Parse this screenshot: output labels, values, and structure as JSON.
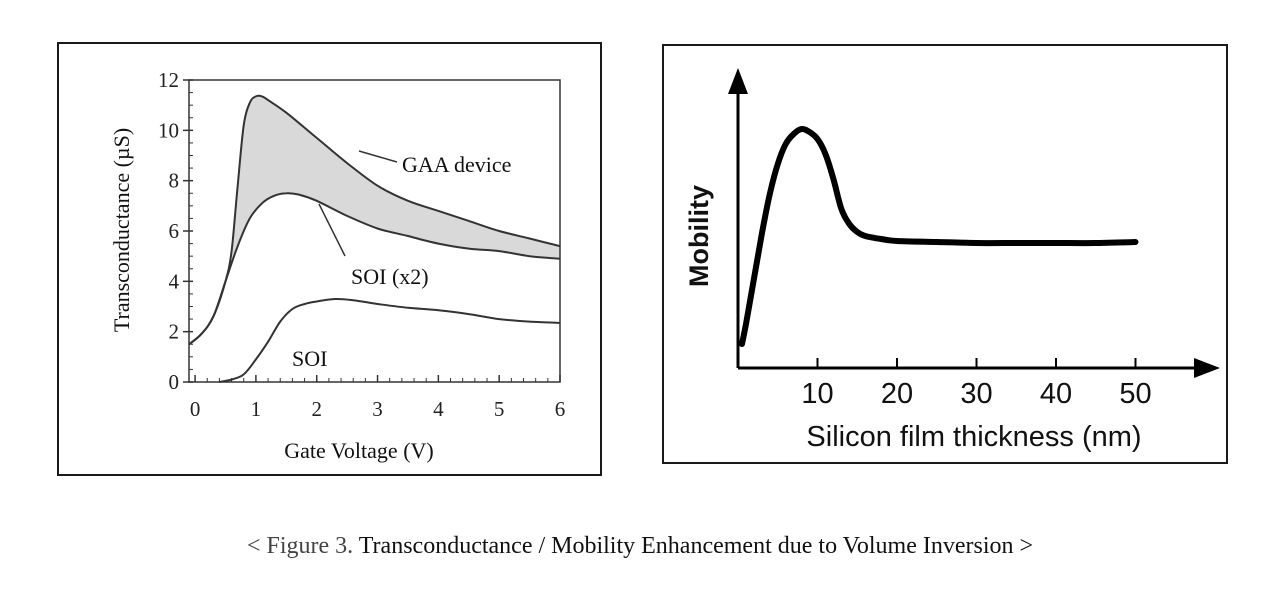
{
  "caption": {
    "prefix": "< Figure 3.",
    "text": "Transconductance / Mobility Enhancement due to Volume Inversion >"
  },
  "chart_data": [
    {
      "type": "line",
      "xlabel": "Gate Voltage (V)",
      "ylabel": "Transconductance (µS)",
      "xlim": [
        0,
        6
      ],
      "ylim": [
        0,
        12
      ],
      "xticks": [
        "0",
        "1",
        "2",
        "3",
        "4",
        "5",
        "6"
      ],
      "yticks": [
        "0",
        "2",
        "4",
        "6",
        "8",
        "10",
        "12"
      ],
      "grid": false,
      "shaded_region": {
        "between": [
          "GAA device",
          "SOI (x2)"
        ],
        "color": "#d9d9d9"
      },
      "series": [
        {
          "name": "GAA device",
          "x": [
            -0.1,
            0.1,
            0.3,
            0.5,
            0.6,
            0.7,
            0.8,
            0.9,
            1.0,
            1.1,
            1.2,
            1.5,
            2.0,
            2.5,
            3.0,
            3.5,
            4.0,
            4.5,
            5.0,
            5.5,
            6.0
          ],
          "values": [
            1.5,
            1.9,
            2.6,
            4.0,
            5.2,
            7.8,
            10.2,
            11.1,
            11.35,
            11.35,
            11.2,
            10.7,
            9.7,
            8.7,
            7.8,
            7.2,
            6.8,
            6.4,
            6.0,
            5.7,
            5.4
          ]
        },
        {
          "name": "SOI (x2)",
          "x": [
            -0.1,
            0.1,
            0.3,
            0.5,
            0.7,
            0.9,
            1.1,
            1.3,
            1.5,
            1.7,
            2.0,
            2.5,
            3.0,
            3.5,
            4.0,
            4.5,
            5.0,
            5.5,
            6.0
          ],
          "values": [
            1.5,
            1.9,
            2.6,
            4.0,
            5.4,
            6.5,
            7.1,
            7.4,
            7.5,
            7.45,
            7.2,
            6.6,
            6.1,
            5.8,
            5.5,
            5.3,
            5.2,
            5.0,
            4.9
          ]
        },
        {
          "name": "SOI",
          "x": [
            0.4,
            0.6,
            0.8,
            1.0,
            1.2,
            1.4,
            1.6,
            1.8,
            2.0,
            2.3,
            2.6,
            3.0,
            3.5,
            4.0,
            4.5,
            5.0,
            5.5,
            6.0
          ],
          "values": [
            0.0,
            0.1,
            0.3,
            0.9,
            1.6,
            2.4,
            2.9,
            3.1,
            3.2,
            3.3,
            3.25,
            3.1,
            2.95,
            2.85,
            2.7,
            2.5,
            2.4,
            2.35
          ]
        }
      ],
      "annotations": [
        {
          "text": "GAA device"
        },
        {
          "text": "SOI (x2)"
        },
        {
          "text": "SOI"
        }
      ]
    },
    {
      "type": "line",
      "xlabel": "Silicon film thickness (nm)",
      "ylabel": "Mobility",
      "xlim": [
        0,
        50
      ],
      "xticks": [
        "10",
        "20",
        "30",
        "40",
        "50"
      ],
      "yaxis_ticks": false,
      "series": [
        {
          "name": "",
          "x": [
            0.5,
            1,
            2,
            3,
            4,
            5,
            6,
            7,
            8,
            9,
            10,
            11,
            12,
            13,
            14,
            15,
            16,
            18,
            20,
            25,
            30,
            35,
            40,
            45,
            50
          ],
          "values": [
            0.1,
            0.3,
            0.75,
            1.2,
            1.6,
            1.9,
            2.1,
            2.2,
            2.25,
            2.22,
            2.15,
            2.0,
            1.75,
            1.45,
            1.3,
            1.22,
            1.18,
            1.15,
            1.13,
            1.12,
            1.11,
            1.11,
            1.11,
            1.11,
            1.12
          ]
        }
      ]
    }
  ]
}
